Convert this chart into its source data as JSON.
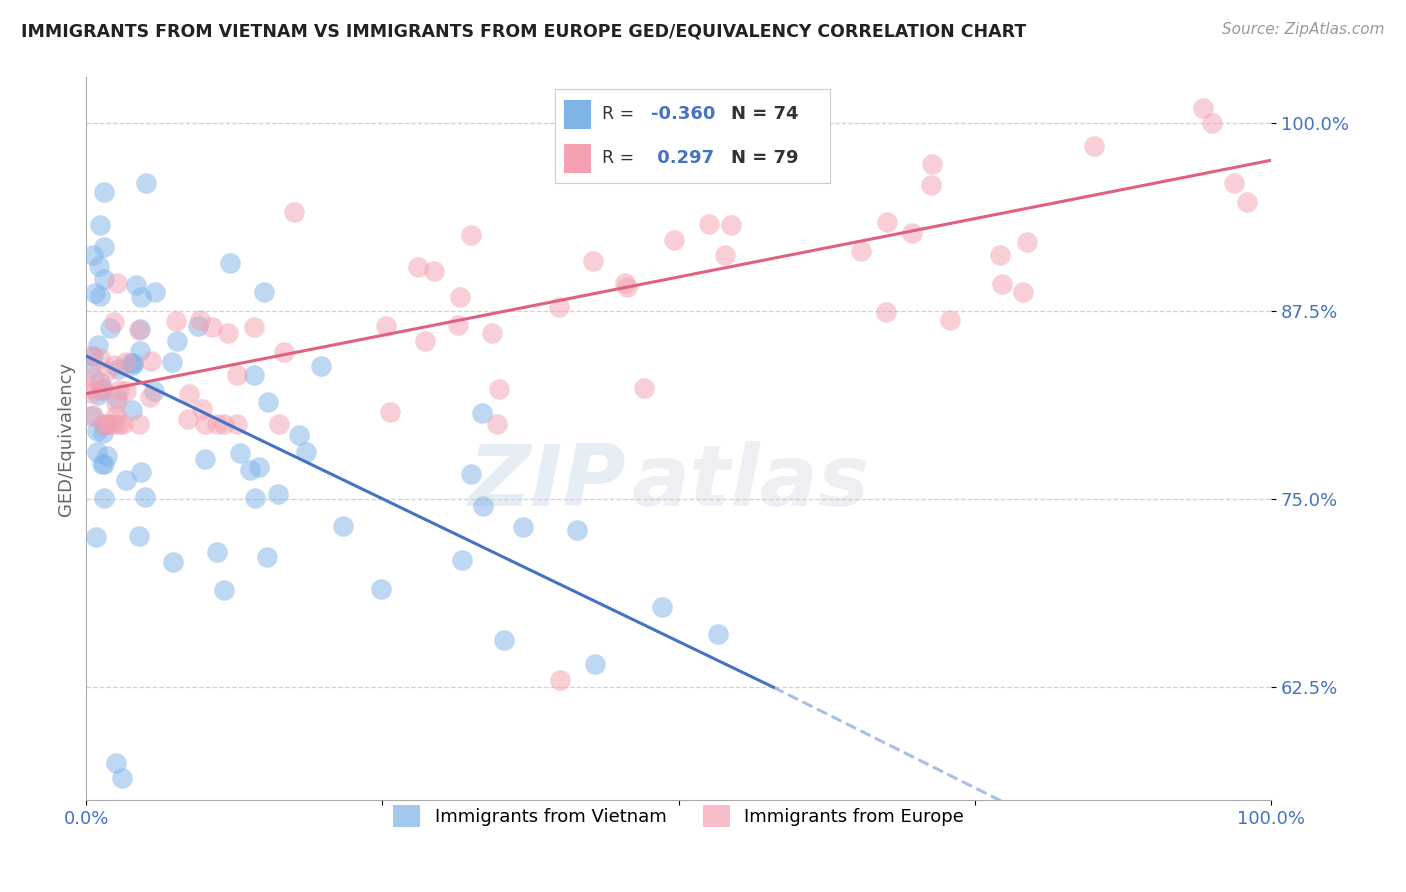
{
  "title": "IMMIGRANTS FROM VIETNAM VS IMMIGRANTS FROM EUROPE GED/EQUIVALENCY CORRELATION CHART",
  "source": "Source: ZipAtlas.com",
  "ylabel": "GED/Equivalency",
  "xlim": [
    0,
    100
  ],
  "ylim": [
    55,
    103
  ],
  "yticks": [
    62.5,
    75.0,
    87.5,
    100.0
  ],
  "xticks": [
    0,
    25,
    50,
    75,
    100
  ],
  "xtick_labels": [
    "0.0%",
    "",
    "",
    "",
    "100.0%"
  ],
  "ytick_labels": [
    "62.5%",
    "75.0%",
    "87.5%",
    "100.0%"
  ],
  "legend_label1": "Immigrants from Vietnam",
  "legend_label2": "Immigrants from Europe",
  "color_vietnam": "#7EB3E8",
  "color_europe": "#F4A0B0",
  "color_trendline_vietnam": "#4472C4",
  "color_trendline_europe": "#E06080",
  "watermark_zip": "ZIP",
  "watermark_atlas": "atlas",
  "background_color": "#FFFFFF",
  "grid_color": "#CCCCCC",
  "viet_trend_start_x": 0,
  "viet_trend_start_y": 84.5,
  "viet_trend_end_solid_x": 58,
  "viet_trend_end_solid_y": 62.5,
  "viet_trend_end_dash_x": 100,
  "viet_trend_end_dash_y": 46.0,
  "euro_trend_start_x": 0,
  "euro_trend_start_y": 82.0,
  "euro_trend_end_x": 100,
  "euro_trend_end_y": 97.5
}
